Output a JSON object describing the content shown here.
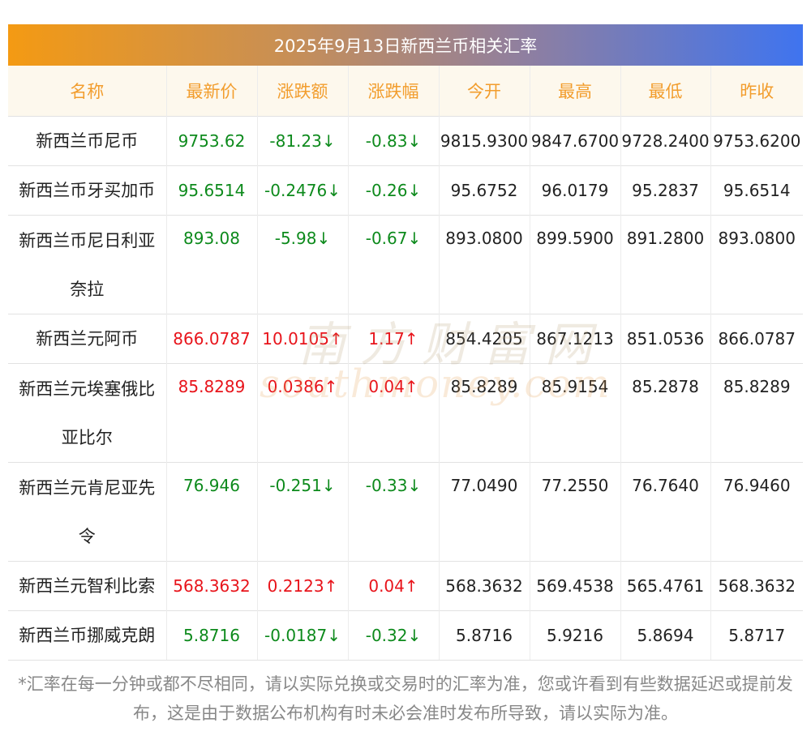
{
  "title": "2025年9月13日新西兰币相关汇率",
  "headers": [
    "名称",
    "最新价",
    "涨跌额",
    "涨跌幅",
    "今开",
    "最高",
    "最低",
    "昨收"
  ],
  "rows": [
    {
      "name": "新西兰币尼币",
      "latest": "9753.62",
      "change": "-81.23↓",
      "pct": "-0.83↓",
      "open": "9815.9300",
      "high": "9847.6700",
      "low": "9728.2400",
      "prev": "9753.6200",
      "dir": "down"
    },
    {
      "name": "新西兰币牙买加币",
      "latest": "95.6514",
      "change": "-0.2476↓",
      "pct": "-0.26↓",
      "open": "95.6752",
      "high": "96.0179",
      "low": "95.2837",
      "prev": "95.6514",
      "dir": "down"
    },
    {
      "name": "新西兰币尼日利亚奈拉",
      "latest": "893.08",
      "change": "-5.98↓",
      "pct": "-0.67↓",
      "open": "893.0800",
      "high": "899.5900",
      "low": "891.2800",
      "prev": "893.0800",
      "dir": "down"
    },
    {
      "name": "新西兰元阿币",
      "latest": "866.0787",
      "change": "10.0105↑",
      "pct": "1.17↑",
      "open": "854.4205",
      "high": "867.1213",
      "low": "851.0536",
      "prev": "866.0787",
      "dir": "up"
    },
    {
      "name": "新西兰元埃塞俄比亚比尔",
      "latest": "85.8289",
      "change": "0.0386↑",
      "pct": "0.04↑",
      "open": "85.8289",
      "high": "85.9154",
      "low": "85.2878",
      "prev": "85.8289",
      "dir": "up"
    },
    {
      "name": "新西兰元肯尼亚先令",
      "latest": "76.946",
      "change": "-0.251↓",
      "pct": "-0.33↓",
      "open": "77.0490",
      "high": "77.2550",
      "low": "76.7640",
      "prev": "76.9460",
      "dir": "down"
    },
    {
      "name": "新西兰元智利比索",
      "latest": "568.3632",
      "change": "0.2123↑",
      "pct": "0.04↑",
      "open": "568.3632",
      "high": "569.4538",
      "low": "565.4761",
      "prev": "568.3632",
      "dir": "up"
    },
    {
      "name": "新西兰币挪威克朗",
      "latest": "5.8716",
      "change": "-0.0187↓",
      "pct": "-0.32↓",
      "open": "5.8716",
      "high": "5.9216",
      "low": "5.8694",
      "prev": "5.8717",
      "dir": "down"
    }
  ],
  "watermark": {
    "cn": "南方财富网",
    "en": "southmoney.com"
  },
  "footnote": "*汇率在每一分钟或都不尽相同，请以实际兑换或交易时的汇率为准，您或许看到有些数据延迟或提前发布，这是由于数据公布机构有时未必会准时发布所导致，请以实际为准。",
  "colors": {
    "down": "#0d8a1c",
    "up": "#e8141b",
    "header_text": "#f29d2d",
    "header_bg": "#fdf8ed"
  }
}
